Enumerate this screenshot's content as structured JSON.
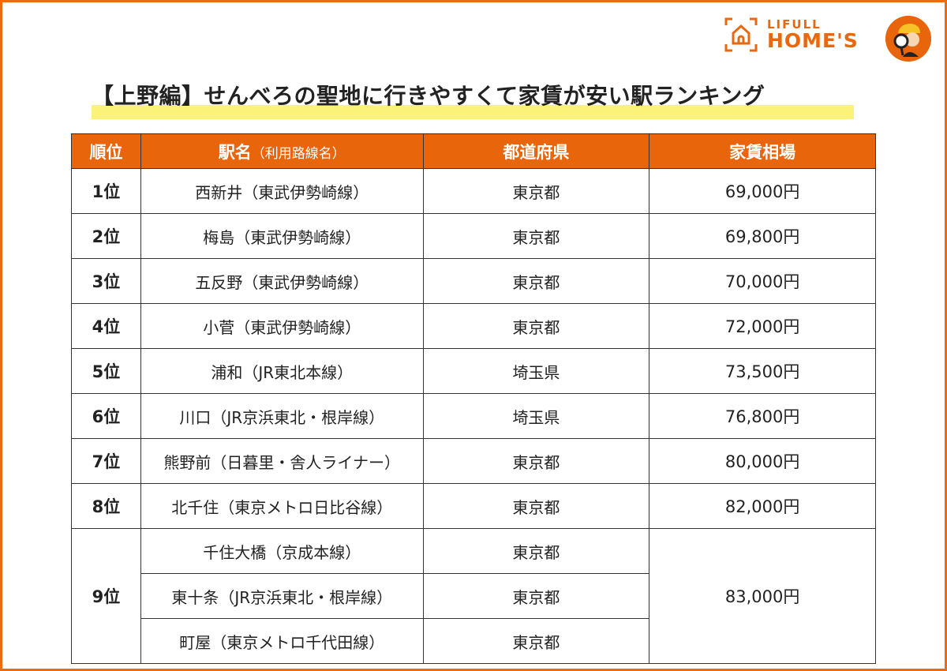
{
  "brand": {
    "line1": "LIFULL",
    "line2": "HOME'S",
    "color": "#e8650c"
  },
  "title": "【上野編】せんべろの聖地に行きやすくて家賃が安い駅ランキング",
  "table": {
    "headers": {
      "rank": "順位",
      "station": "駅名",
      "station_sub": "（利用路線名）",
      "prefecture": "都道府県",
      "rent": "家賃相場"
    },
    "rows": [
      {
        "rank": "1位",
        "station": "西新井（東武伊勢崎線）",
        "prefecture": "東京都",
        "rent": "69,000円"
      },
      {
        "rank": "2位",
        "station": "梅島（東武伊勢崎線）",
        "prefecture": "東京都",
        "rent": "69,800円"
      },
      {
        "rank": "3位",
        "station": "五反野（東武伊勢崎線）",
        "prefecture": "東京都",
        "rent": "70,000円"
      },
      {
        "rank": "4位",
        "station": "小菅（東武伊勢崎線）",
        "prefecture": "東京都",
        "rent": "72,000円"
      },
      {
        "rank": "5位",
        "station": "浦和（JR東北本線）",
        "prefecture": "埼玉県",
        "rent": "73,500円"
      },
      {
        "rank": "6位",
        "station": "川口（JR京浜東北・根岸線）",
        "prefecture": "埼玉県",
        "rent": "76,800円"
      },
      {
        "rank": "7位",
        "station": "熊野前（日暮里・舎人ライナー）",
        "prefecture": "東京都",
        "rent": "80,000円"
      },
      {
        "rank": "8位",
        "station": "北千住（東京メトロ日比谷線）",
        "prefecture": "東京都",
        "rent": "82,000円"
      }
    ],
    "tied": {
      "rank": "9位",
      "rent": "83,000円",
      "rows": [
        {
          "station": "千住大橋（京成本線）",
          "prefecture": "東京都"
        },
        {
          "station": "東十条（JR京浜東北・根岸線）",
          "prefecture": "東京都"
        },
        {
          "station": "町屋（東京メトロ千代田線）",
          "prefecture": "東京都"
        }
      ]
    }
  }
}
